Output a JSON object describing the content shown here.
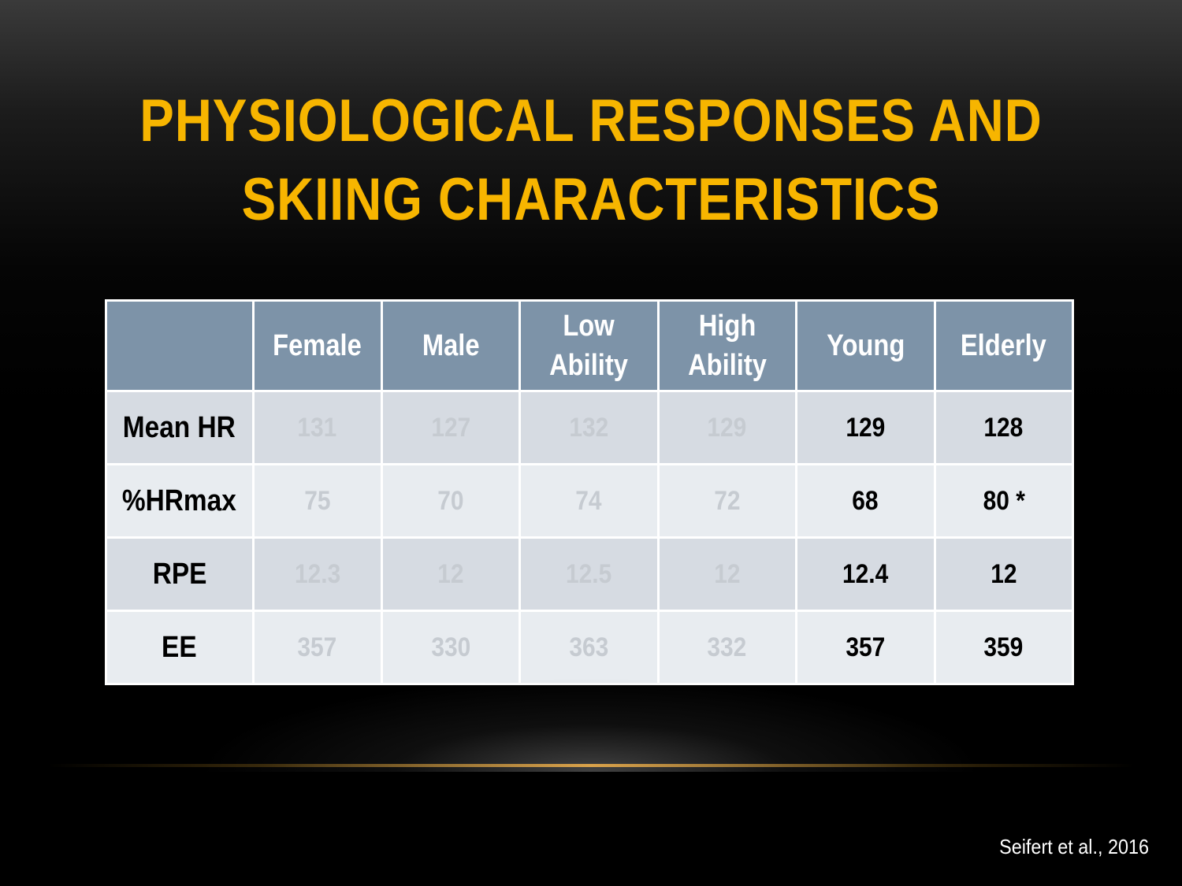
{
  "title": {
    "line1": "PHYSIOLOGICAL RESPONSES AND",
    "line2": "SKIING CHARACTERISTICS"
  },
  "table": {
    "columns": [
      "",
      "Female",
      "Male",
      "Low Ability",
      "High Ability",
      "Young",
      "Elderly"
    ],
    "rows": [
      {
        "label": "Mean HR",
        "values": [
          "131",
          "127",
          "132",
          "129",
          "129",
          "128"
        ]
      },
      {
        "label": "%HRmax",
        "values": [
          "75",
          "70",
          "74",
          "72",
          "68",
          "80 *"
        ]
      },
      {
        "label": "RPE",
        "values": [
          "12.3",
          "12",
          "12.5",
          "12",
          "12.4",
          "12"
        ]
      },
      {
        "label": "EE",
        "values": [
          "357",
          "330",
          "363",
          "332",
          "357",
          "359"
        ]
      }
    ]
  },
  "citation": "Seifert et al., 2016",
  "colors": {
    "title": "#f7b500",
    "header_bg": "#7d93a8",
    "row_odd_bg": "#d6dbe2",
    "row_even_bg": "#e8ecf0",
    "faded_text": "#c6cbd1",
    "accent_line": "#d9a24a"
  }
}
